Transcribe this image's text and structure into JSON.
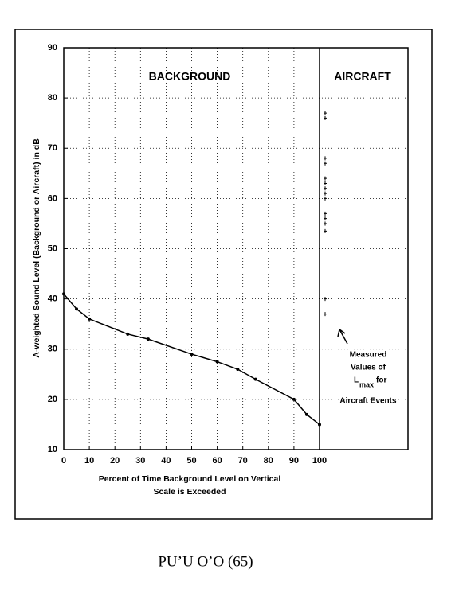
{
  "chart_data": {
    "type": "line",
    "background_label": "BACKGROUND",
    "aircraft_label": "AIRCRAFT",
    "ylabel": "A-weighted Sound Level (Background or Aircraft) in dB",
    "xlabel": [
      "Percent of Time Background Level on Vertical",
      "Scale is Exceeded"
    ],
    "x": [
      0,
      5,
      10,
      25,
      33,
      50,
      60,
      68,
      75,
      90,
      95,
      100
    ],
    "values": [
      41,
      38,
      36,
      33,
      32,
      29,
      27.5,
      26,
      24,
      20,
      17,
      15
    ],
    "aircraft_values": [
      77,
      76,
      68,
      67,
      64,
      63,
      62,
      61,
      60,
      57,
      56,
      55,
      53.5,
      40,
      37
    ],
    "annotation": {
      "lines": [
        "Measured",
        "Values of"
      ],
      "symbol": "L",
      "subscript": "max",
      "after": "for",
      "last": "Aircraft Events"
    },
    "color": "#000000",
    "xlim": [
      0,
      100
    ],
    "xticks": [
      0,
      10,
      20,
      30,
      40,
      50,
      60,
      70,
      80,
      90,
      100
    ],
    "ylim": [
      10,
      90
    ],
    "yticks": [
      10,
      20,
      30,
      40,
      50,
      60,
      70,
      80,
      90
    ],
    "grid": true
  },
  "caption": "PU’U O’O (65)"
}
